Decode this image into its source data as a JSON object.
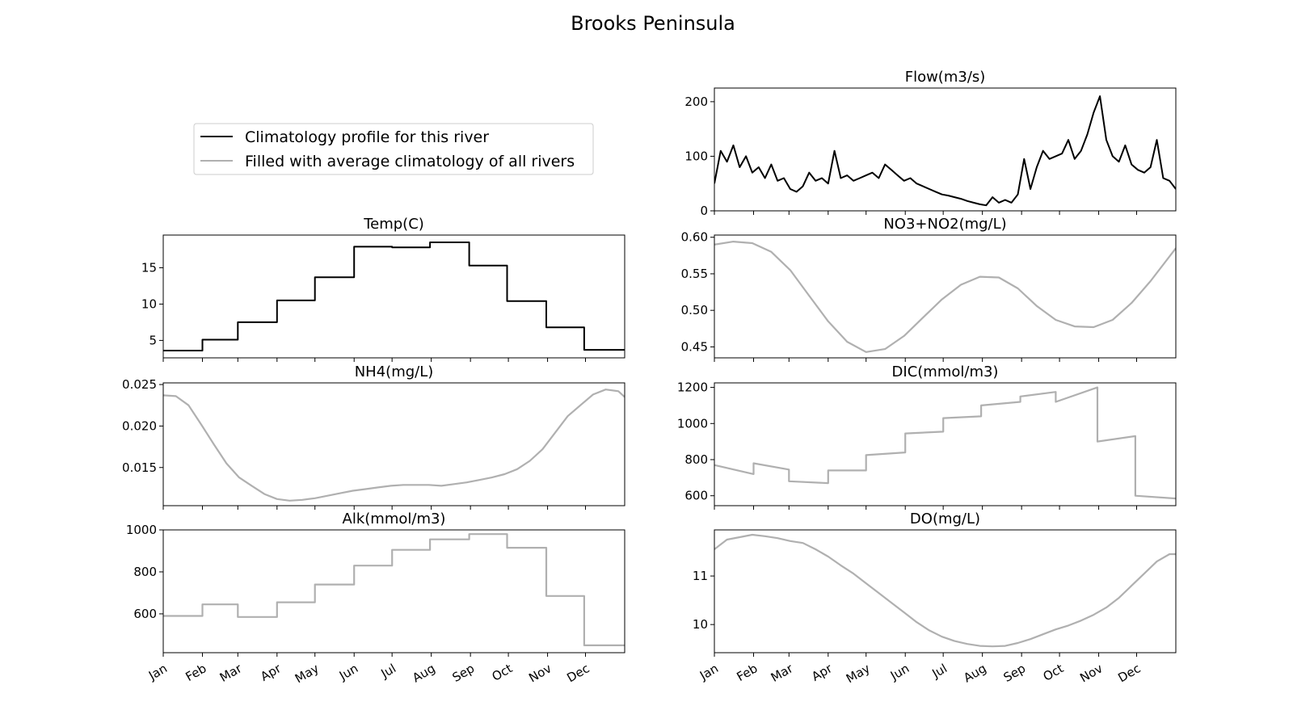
{
  "figure_title": "Brooks Peninsula",
  "legend": {
    "climatology_label": "Climatology profile for this river",
    "filled_label": "Filled with average climatology of all rivers"
  },
  "month_labels": [
    "Jan",
    "Feb",
    "Mar",
    "Apr",
    "May",
    "Jun",
    "Jul",
    "Aug",
    "Sep",
    "Oct",
    "Nov",
    "Dec"
  ],
  "colors": {
    "climatology": "#000000",
    "filled": "#b0b0b0"
  },
  "chart_data": [
    {
      "id": "temp",
      "type": "line",
      "title": "Temp(C)",
      "profile": "climatology",
      "x_unit": "day_of_year",
      "xlim": [
        0,
        365
      ],
      "ylim": [
        2.6,
        19.5
      ],
      "yticks": [
        5,
        10,
        15
      ],
      "ytick_labels": [
        "5",
        "10",
        "15"
      ],
      "series": [
        {
          "x": [
            0,
            31,
            31,
            59,
            59,
            90,
            90,
            120,
            120,
            151,
            151,
            181,
            181,
            211,
            211,
            242,
            242,
            272,
            272,
            303,
            303,
            333,
            333,
            365
          ],
          "y": [
            3.6,
            3.6,
            5.1,
            5.1,
            7.5,
            7.5,
            10.5,
            10.5,
            13.7,
            13.7,
            17.9,
            17.9,
            17.8,
            17.8,
            18.5,
            18.5,
            15.3,
            15.3,
            10.4,
            10.4,
            6.8,
            6.8,
            3.7,
            3.7
          ]
        }
      ]
    },
    {
      "id": "flow",
      "type": "line",
      "title": "Flow(m3/s)",
      "profile": "climatology",
      "x_unit": "day_of_year",
      "xlim": [
        0,
        365
      ],
      "ylim": [
        0,
        225
      ],
      "yticks": [
        0,
        100,
        200
      ],
      "ytick_labels": [
        "0",
        "100",
        "200"
      ],
      "series": [
        {
          "x": [
            0,
            5,
            10,
            15,
            20,
            25,
            30,
            35,
            40,
            45,
            50,
            55,
            60,
            65,
            70,
            75,
            80,
            85,
            90,
            95,
            100,
            105,
            110,
            115,
            120,
            125,
            130,
            135,
            140,
            145,
            150,
            155,
            160,
            165,
            170,
            175,
            180,
            185,
            190,
            195,
            200,
            205,
            210,
            215,
            220,
            225,
            230,
            235,
            240,
            245,
            250,
            255,
            260,
            265,
            270,
            275,
            280,
            285,
            290,
            295,
            300,
            305,
            310,
            315,
            320,
            325,
            330,
            335,
            340,
            345,
            350,
            355,
            360,
            365
          ],
          "y": [
            50,
            110,
            90,
            120,
            80,
            100,
            70,
            80,
            60,
            85,
            55,
            60,
            40,
            35,
            45,
            70,
            55,
            60,
            50,
            110,
            60,
            65,
            55,
            60,
            65,
            70,
            60,
            85,
            75,
            65,
            55,
            60,
            50,
            45,
            40,
            35,
            30,
            28,
            25,
            22,
            18,
            15,
            12,
            10,
            25,
            15,
            20,
            15,
            30,
            95,
            40,
            80,
            110,
            95,
            100,
            105,
            130,
            95,
            110,
            140,
            180,
            210,
            130,
            100,
            90,
            120,
            85,
            75,
            70,
            80,
            130,
            60,
            55,
            40
          ]
        }
      ]
    },
    {
      "id": "no3",
      "type": "line",
      "title": "NO3+NO2(mg/L)",
      "profile": "filled",
      "x_unit": "day_of_year",
      "xlim": [
        0,
        365
      ],
      "ylim": [
        0.435,
        0.603
      ],
      "yticks": [
        0.45,
        0.5,
        0.55,
        0.6
      ],
      "ytick_labels": [
        "0.45",
        "0.50",
        "0.55",
        "0.60"
      ],
      "series": [
        {
          "x": [
            0,
            15,
            30,
            45,
            60,
            75,
            90,
            105,
            120,
            135,
            150,
            165,
            180,
            195,
            210,
            225,
            240,
            255,
            270,
            285,
            300,
            315,
            330,
            345,
            365
          ],
          "y": [
            0.59,
            0.594,
            0.592,
            0.58,
            0.555,
            0.52,
            0.485,
            0.457,
            0.443,
            0.447,
            0.465,
            0.49,
            0.515,
            0.535,
            0.546,
            0.545,
            0.53,
            0.506,
            0.487,
            0.478,
            0.477,
            0.487,
            0.51,
            0.54,
            0.585
          ]
        }
      ]
    },
    {
      "id": "nh4",
      "type": "line",
      "title": "NH4(mg/L)",
      "profile": "filled",
      "x_unit": "day_of_year",
      "xlim": [
        0,
        365
      ],
      "ylim": [
        0.0104,
        0.0252
      ],
      "yticks": [
        0.015,
        0.02,
        0.025
      ],
      "ytick_labels": [
        "0.015",
        "0.020",
        "0.025"
      ],
      "series": [
        {
          "x": [
            0,
            10,
            20,
            30,
            40,
            50,
            60,
            70,
            80,
            90,
            100,
            110,
            120,
            130,
            140,
            150,
            160,
            170,
            180,
            190,
            200,
            210,
            220,
            230,
            240,
            250,
            260,
            270,
            280,
            290,
            300,
            310,
            320,
            330,
            340,
            350,
            360,
            365
          ],
          "y": [
            0.0237,
            0.0236,
            0.0225,
            0.0202,
            0.0178,
            0.0155,
            0.0138,
            0.0128,
            0.0118,
            0.0112,
            0.011,
            0.0111,
            0.0113,
            0.0116,
            0.0119,
            0.0122,
            0.0124,
            0.0126,
            0.0128,
            0.0129,
            0.0129,
            0.0129,
            0.0128,
            0.013,
            0.0132,
            0.0135,
            0.0138,
            0.0142,
            0.0148,
            0.0158,
            0.0172,
            0.0192,
            0.0212,
            0.0225,
            0.0238,
            0.0244,
            0.0242,
            0.0235
          ]
        }
      ]
    },
    {
      "id": "dic",
      "type": "line",
      "title": "DIC(mmol/m3)",
      "profile": "filled",
      "x_unit": "day_of_year",
      "xlim": [
        0,
        365
      ],
      "ylim": [
        545,
        1225
      ],
      "yticks": [
        600,
        800,
        1000,
        1200
      ],
      "ytick_labels": [
        "600",
        "800",
        "1000",
        "1200"
      ],
      "series": [
        {
          "x": [
            0,
            31,
            31,
            59,
            59,
            90,
            90,
            120,
            120,
            151,
            151,
            181,
            181,
            211,
            211,
            242,
            242,
            270,
            270,
            303,
            303,
            333,
            333,
            365
          ],
          "y": [
            770,
            720,
            780,
            745,
            680,
            670,
            740,
            740,
            825,
            840,
            945,
            955,
            1030,
            1040,
            1100,
            1120,
            1150,
            1175,
            1120,
            1200,
            900,
            930,
            600,
            585
          ]
        }
      ]
    },
    {
      "id": "alk",
      "type": "line",
      "title": "Alk(mmol/m3)",
      "profile": "filled",
      "x_unit": "day_of_year",
      "xlim": [
        0,
        365
      ],
      "ylim": [
        415,
        1000
      ],
      "yticks": [
        600,
        800,
        1000
      ],
      "ytick_labels": [
        "600",
        "800",
        "1000"
      ],
      "series": [
        {
          "x": [
            0,
            31,
            31,
            59,
            59,
            90,
            90,
            120,
            120,
            151,
            151,
            181,
            181,
            211,
            211,
            242,
            242,
            272,
            272,
            303,
            303,
            333,
            333,
            365
          ],
          "y": [
            590,
            590,
            645,
            645,
            585,
            585,
            655,
            655,
            740,
            740,
            830,
            830,
            905,
            905,
            955,
            955,
            980,
            980,
            915,
            915,
            685,
            685,
            450,
            450
          ]
        }
      ]
    },
    {
      "id": "do",
      "type": "line",
      "title": "DO(mg/L)",
      "profile": "filled",
      "x_unit": "day_of_year",
      "xlim": [
        0,
        365
      ],
      "ylim": [
        9.42,
        11.95
      ],
      "yticks": [
        10,
        11
      ],
      "ytick_labels": [
        "10",
        "11"
      ],
      "series": [
        {
          "x": [
            0,
            10,
            20,
            30,
            40,
            50,
            60,
            70,
            80,
            90,
            100,
            110,
            120,
            130,
            140,
            150,
            160,
            170,
            180,
            190,
            200,
            210,
            220,
            230,
            240,
            250,
            260,
            270,
            280,
            290,
            300,
            310,
            320,
            330,
            340,
            350,
            360,
            365
          ],
          "y": [
            11.55,
            11.75,
            11.8,
            11.85,
            11.82,
            11.78,
            11.72,
            11.68,
            11.55,
            11.4,
            11.22,
            11.05,
            10.85,
            10.65,
            10.45,
            10.25,
            10.05,
            9.88,
            9.75,
            9.66,
            9.6,
            9.56,
            9.55,
            9.56,
            9.62,
            9.7,
            9.8,
            9.9,
            9.98,
            10.08,
            10.2,
            10.35,
            10.55,
            10.8,
            11.05,
            11.3,
            11.45,
            11.45
          ]
        }
      ]
    }
  ]
}
